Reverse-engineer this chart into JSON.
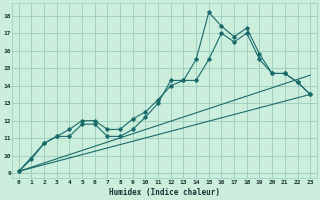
{
  "xlabel": "Humidex (Indice chaleur)",
  "bg_color": "#cceedd",
  "grid_color": "#99ccbb",
  "line_color": "#1a6b6b",
  "xlim": [
    -0.5,
    23.5
  ],
  "ylim": [
    8.7,
    18.7
  ],
  "xticks": [
    0,
    1,
    2,
    3,
    4,
    5,
    6,
    7,
    8,
    9,
    10,
    11,
    12,
    13,
    14,
    15,
    16,
    17,
    18,
    19,
    20,
    21,
    22,
    23
  ],
  "yticks": [
    9,
    10,
    11,
    12,
    13,
    14,
    15,
    16,
    17,
    18
  ],
  "curve1_x": [
    0,
    1,
    2,
    3,
    4,
    5,
    6,
    7,
    8,
    9,
    10,
    11,
    12,
    13,
    14,
    15,
    16,
    17,
    18,
    19,
    20,
    21,
    22,
    23
  ],
  "curve1_y": [
    9.1,
    9.8,
    10.7,
    11.1,
    11.1,
    11.8,
    11.8,
    11.1,
    11.1,
    11.5,
    12.2,
    13.0,
    14.3,
    14.3,
    15.5,
    18.2,
    17.4,
    16.8,
    17.3,
    15.8,
    14.7,
    14.7,
    14.2,
    13.5
  ],
  "curve2_x": [
    0,
    2,
    3,
    4,
    5,
    6,
    7,
    8,
    9,
    10,
    11,
    12,
    13,
    14,
    15,
    16,
    17,
    18,
    19,
    20,
    21,
    22,
    23
  ],
  "curve2_y": [
    9.1,
    10.7,
    11.1,
    11.5,
    12.0,
    12.0,
    11.5,
    11.5,
    12.1,
    12.5,
    13.2,
    14.0,
    14.3,
    14.3,
    15.5,
    17.0,
    16.5,
    17.0,
    15.5,
    14.7,
    14.7,
    14.2,
    13.5
  ],
  "curve3_x": [
    0,
    23
  ],
  "curve3_y": [
    9.1,
    14.6
  ],
  "curve4_x": [
    0,
    23
  ],
  "curve4_y": [
    9.1,
    13.5
  ]
}
